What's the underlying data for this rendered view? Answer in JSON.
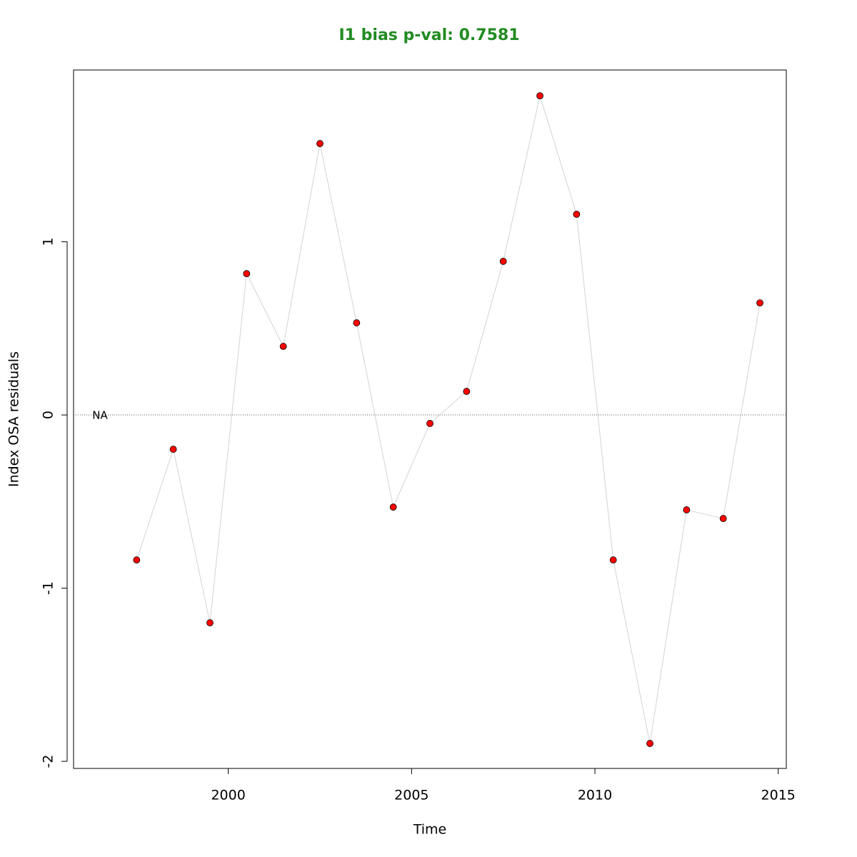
{
  "chart_data": {
    "type": "line",
    "title": "I1 bias p-val: 0.7581",
    "title_color": "#228b22",
    "x_label": "Time",
    "y_label": "Index OSA residuals",
    "x": [
      1997.5,
      1998.5,
      1999.5,
      2000.5,
      2001.5,
      2002.5,
      2003.5,
      2004.5,
      2005.5,
      2006.5,
      2007.5,
      2008.5,
      2009.5,
      2010.5,
      2011.5,
      2012.5,
      2013.5,
      2014.5
    ],
    "series": [
      {
        "color": "#d3d3d3",
        "marker_color": "#ff0000",
        "values": [
          -0.837,
          -0.198,
          -1.2,
          0.816,
          0.396,
          1.567,
          0.532,
          -0.532,
          -0.049,
          0.136,
          0.887,
          1.843,
          1.159,
          -0.837,
          -1.897,
          -0.548,
          -0.598,
          0.647
        ]
      }
    ],
    "reference_line": 0,
    "annotation": "NA",
    "annotation_x": 1996.5,
    "xlim": [
      1995.78,
      2015.22
    ],
    "ylim": [
      -2.041,
      1.992
    ],
    "xticks": [
      2000,
      2005,
      2010,
      2015
    ],
    "yticks": [
      -2,
      -1,
      0,
      1
    ]
  }
}
